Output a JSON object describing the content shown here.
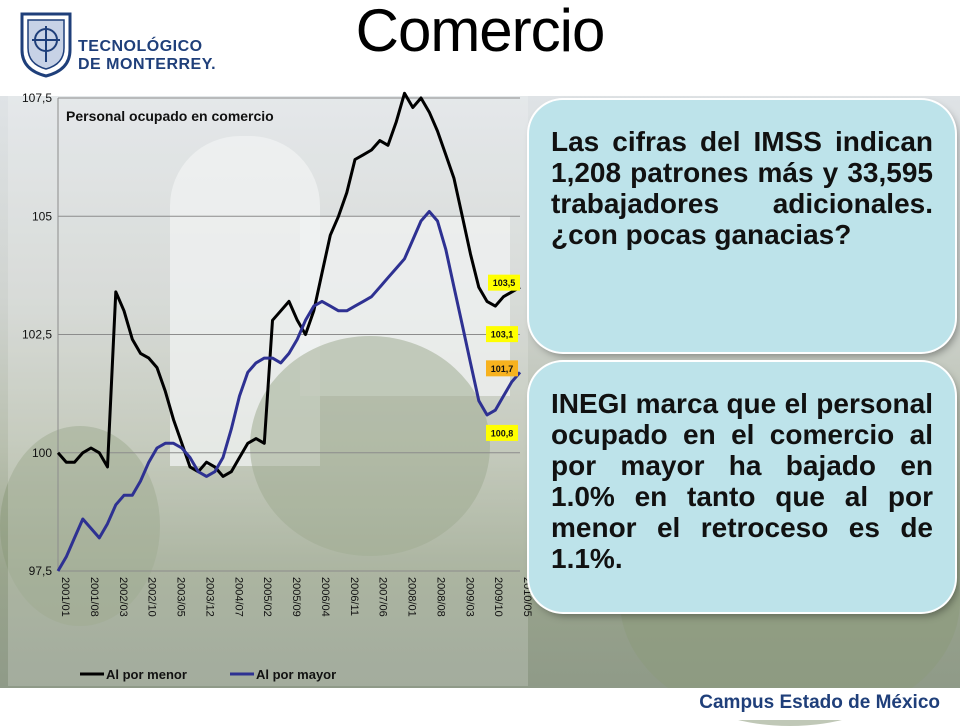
{
  "slide": {
    "title": "Comercio",
    "logo": {
      "line1": "TECNOLÓGICO",
      "line2": "DE MONTERREY."
    },
    "footer": "Campus Estado de México",
    "bubble1": "Las cifras del IMSS indican 1,208 patrones más y 33,595 trabajadores adicionales. ¿con pocas ganacias?",
    "bubble2": "INEGI marca que el personal ocupado en el comercio al por mayor ha bajado en 1.0% en tanto que al por menor el retroceso es de 1.1%.",
    "colors": {
      "retail": "#000000",
      "wholesale": "#2e3192",
      "bubble": "#bde3ea",
      "label_yellow": "#ffff00",
      "label_orange": "#f7b21e",
      "brand": "#1f3f7a"
    }
  },
  "chart_data": {
    "type": "line",
    "title": "Personal ocupado en  comercio",
    "xlabel": "",
    "ylabel": "",
    "ylim": [
      97.5,
      107.5
    ],
    "yticks": [
      "97,5",
      "100",
      "102,5",
      "105",
      "107,5"
    ],
    "ytick_values": [
      97.5,
      100,
      102.5,
      105,
      107.5
    ],
    "xtick_labels": [
      "2001/01",
      "2001/08",
      "2002/03",
      "2002/10",
      "2003/05",
      "2003/12",
      "2004/07",
      "2005/02",
      "2005/09",
      "2006/04",
      "2006/11",
      "2007/06",
      "2008/01",
      "2008/08",
      "2009/03",
      "2009/10",
      "2010/05"
    ],
    "legend_position": "bottom-left",
    "grid": "horizontal",
    "series": [
      {
        "name": "Al por menor",
        "values": [
          100.0,
          99.8,
          99.8,
          100.0,
          100.1,
          100.0,
          99.7,
          103.4,
          103.0,
          102.4,
          102.1,
          102.0,
          101.8,
          101.3,
          100.7,
          100.2,
          99.7,
          99.6,
          99.8,
          99.7,
          99.5,
          99.6,
          99.9,
          100.2,
          100.3,
          100.2,
          102.8,
          103.0,
          103.2,
          102.8,
          102.5,
          103.0,
          103.8,
          104.6,
          105.0,
          105.5,
          106.2,
          106.3,
          106.4,
          106.6,
          106.5,
          107.0,
          107.6,
          107.3,
          107.5,
          107.2,
          106.8,
          106.3,
          105.8,
          105.0,
          104.2,
          103.5,
          103.2,
          103.1,
          103.3,
          103.4,
          103.5
        ],
        "end_label": "103,5",
        "min_label": "103,1"
      },
      {
        "name": "Al por mayor",
        "values": [
          97.5,
          97.8,
          98.2,
          98.6,
          98.4,
          98.2,
          98.5,
          98.9,
          99.1,
          99.1,
          99.4,
          99.8,
          100.1,
          100.2,
          100.2,
          100.1,
          99.9,
          99.6,
          99.5,
          99.6,
          99.9,
          100.5,
          101.2,
          101.7,
          101.9,
          102.0,
          102.0,
          101.9,
          102.1,
          102.4,
          102.8,
          103.1,
          103.2,
          103.1,
          103.0,
          103.0,
          103.1,
          103.2,
          103.3,
          103.5,
          103.7,
          103.9,
          104.1,
          104.5,
          104.9,
          105.1,
          104.9,
          104.3,
          103.5,
          102.7,
          101.9,
          101.1,
          100.8,
          100.9,
          101.2,
          101.5,
          101.7
        ],
        "end_label": "101,7",
        "min_label": "100,8"
      }
    ]
  }
}
